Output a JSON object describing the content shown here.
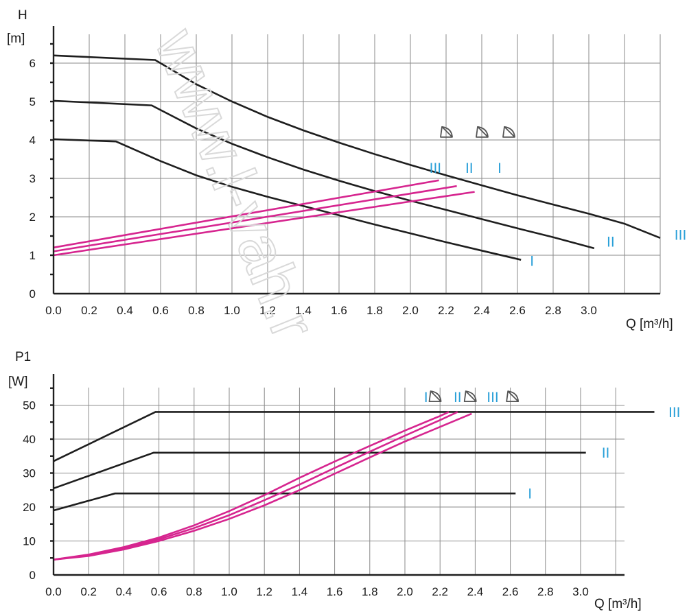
{
  "chart_data": [
    {
      "type": "line",
      "ylabel_symbol": "H",
      "ylabel_unit": "[m]",
      "xlabel": "Q [m³/h]",
      "x_ticks": [
        0.0,
        0.2,
        0.4,
        0.6,
        0.8,
        1.0,
        1.2,
        1.4,
        1.6,
        1.8,
        2.0,
        2.2,
        2.4,
        2.6,
        2.8,
        3.0
      ],
      "y_ticks": [
        0,
        1,
        2,
        3,
        4,
        5,
        6
      ],
      "xlim": [
        0,
        3.4
      ],
      "ylim": [
        0,
        7
      ],
      "grid": true,
      "series": [
        {
          "name": "I",
          "color": "#1e1e1e",
          "x": [
            0,
            0.35,
            0.6,
            0.8,
            1.0,
            1.2,
            1.4,
            1.6,
            1.8,
            2.0,
            2.2,
            2.4,
            2.62
          ],
          "y": [
            4.02,
            3.96,
            3.45,
            3.08,
            2.78,
            2.52,
            2.28,
            2.04,
            1.8,
            1.57,
            1.34,
            1.12,
            0.88
          ]
        },
        {
          "name": "II",
          "color": "#1e1e1e",
          "x": [
            0,
            0.55,
            0.8,
            1.0,
            1.2,
            1.4,
            1.6,
            1.8,
            2.0,
            2.2,
            2.4,
            2.6,
            2.8,
            3.03
          ],
          "y": [
            5.02,
            4.9,
            4.3,
            3.9,
            3.55,
            3.23,
            2.94,
            2.67,
            2.42,
            2.18,
            1.94,
            1.7,
            1.47,
            1.18
          ]
        },
        {
          "name": "III",
          "color": "#1e1e1e",
          "x": [
            0,
            0.57,
            0.8,
            1.0,
            1.2,
            1.4,
            1.6,
            1.8,
            2.0,
            2.2,
            2.4,
            2.6,
            2.8,
            3.0,
            3.2,
            3.4
          ],
          "y": [
            6.2,
            6.08,
            5.45,
            5.0,
            4.6,
            4.25,
            3.93,
            3.63,
            3.35,
            3.08,
            2.82,
            2.56,
            2.32,
            2.08,
            1.82,
            1.45
          ]
        },
        {
          "name": "I",
          "color": "#d6258f",
          "x": [
            0,
            2.16
          ],
          "y": [
            1.2,
            2.95
          ]
        },
        {
          "name": "II",
          "color": "#d6258f",
          "x": [
            0,
            2.26
          ],
          "y": [
            1.1,
            2.8
          ]
        },
        {
          "name": "III",
          "color": "#d6258f",
          "x": [
            0,
            2.36
          ],
          "y": [
            1.0,
            2.65
          ]
        }
      ],
      "annotations": {
        "top_labels": [
          {
            "text": "III",
            "x": 2.14
          },
          {
            "text": "II",
            "x": 2.33
          },
          {
            "text": "I",
            "x": 2.5
          }
        ],
        "end_labels": [
          {
            "text": "I",
            "x": 2.67,
            "y": 0.72
          },
          {
            "text": "II",
            "x": 3.1,
            "y": 1.22
          },
          {
            "text": "III",
            "x": 3.48,
            "y": 1.4
          }
        ],
        "mode_icons": [
          {
            "x": 2.2,
            "y": 4.2
          },
          {
            "x": 2.4,
            "y": 4.2
          },
          {
            "x": 2.55,
            "y": 4.2
          }
        ]
      }
    },
    {
      "type": "line",
      "ylabel_symbol": "P1",
      "ylabel_unit": "[W]",
      "xlabel": "Q [m³/h]",
      "x_ticks": [
        0.0,
        0.2,
        0.4,
        0.6,
        0.8,
        1.0,
        1.2,
        1.4,
        1.6,
        1.8,
        2.0,
        2.2,
        2.4,
        2.6,
        2.8,
        3.0
      ],
      "y_ticks": [
        0,
        10,
        20,
        30,
        40,
        50
      ],
      "xlim": [
        0,
        3.25
      ],
      "ylim": [
        0,
        58
      ],
      "grid": true,
      "series": [
        {
          "name": "I",
          "color": "#1e1e1e",
          "x": [
            0,
            0.35,
            2.63
          ],
          "y": [
            19,
            24,
            24
          ]
        },
        {
          "name": "II",
          "color": "#1e1e1e",
          "x": [
            0,
            0.57,
            3.03
          ],
          "y": [
            25.5,
            36,
            36
          ]
        },
        {
          "name": "III",
          "color": "#1e1e1e",
          "x": [
            0,
            0.58,
            3.42
          ],
          "y": [
            33.5,
            48,
            48
          ]
        },
        {
          "name": "I",
          "color": "#d6258f",
          "x": [
            0,
            0.2,
            0.4,
            0.6,
            0.8,
            1.0,
            1.2,
            1.4,
            1.6,
            1.8,
            2.0,
            2.2,
            2.25
          ],
          "y": [
            4.5,
            6.0,
            8.2,
            11.0,
            14.6,
            18.8,
            23.5,
            28.6,
            33.4,
            38.0,
            42.5,
            46.8,
            48
          ]
        },
        {
          "name": "II",
          "color": "#d6258f",
          "x": [
            0,
            0.2,
            0.4,
            0.6,
            0.8,
            1.0,
            1.2,
            1.4,
            1.6,
            1.8,
            2.0,
            2.2,
            2.3
          ],
          "y": [
            4.5,
            5.8,
            7.9,
            10.5,
            13.8,
            17.6,
            22.0,
            26.6,
            31.5,
            36.3,
            41.0,
            45.6,
            48
          ]
        },
        {
          "name": "III",
          "color": "#d6258f",
          "x": [
            0,
            0.2,
            0.4,
            0.6,
            0.8,
            1.0,
            1.2,
            1.4,
            1.6,
            1.8,
            2.0,
            2.2,
            2.38
          ],
          "y": [
            4.5,
            5.6,
            7.5,
            10.0,
            13.0,
            16.5,
            20.5,
            25.0,
            29.8,
            34.6,
            39.3,
            43.6,
            47.5
          ]
        }
      ],
      "annotations": {
        "top_labels": [
          {
            "text": "I",
            "x": 2.12
          },
          {
            "text": "II",
            "x": 2.3
          },
          {
            "text": "III",
            "x": 2.5
          }
        ],
        "mode_icons": [
          {
            "x": 2.17,
            "y": 52.5
          },
          {
            "x": 2.37,
            "y": 52.5
          },
          {
            "x": 2.61,
            "y": 52.5
          }
        ],
        "end_labels": [
          {
            "text": "I",
            "x": 2.7,
            "y": 22.5
          },
          {
            "text": "II",
            "x": 3.12,
            "y": 34.5
          },
          {
            "text": "III",
            "x": 3.5,
            "y": 46.5
          }
        ]
      }
    }
  ],
  "watermark": "www.l-vah.r"
}
